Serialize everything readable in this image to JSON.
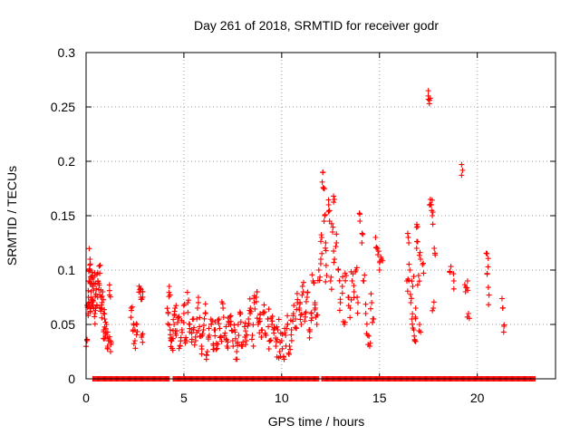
{
  "chart_data": {
    "type": "scatter",
    "title": "Day 261 of 2018, SRMTID for receiver godr",
    "xlabel": "GPS time / hours",
    "ylabel": "SRMTID / TECUs",
    "xlim": [
      0,
      24
    ],
    "ylim": [
      0,
      0.3
    ],
    "xticks": [
      0,
      5,
      10,
      15,
      20
    ],
    "xtick_labels": [
      "0",
      "5",
      "10",
      "15",
      "20"
    ],
    "yticks": [
      0,
      0.05,
      0.1,
      0.15,
      0.2,
      0.25,
      0.3
    ],
    "ytick_labels": [
      "0",
      "0.05",
      "0.1",
      "0.15",
      "0.2",
      "0.25",
      "0.3"
    ],
    "grid": true,
    "legend": "none",
    "marker": "+",
    "color": "#ff0000",
    "series": [
      {
        "name": "SRMTID",
        "points": [
          [
            0.05,
            0.035
          ],
          [
            0.1,
            0.06
          ],
          [
            0.12,
            0.075
          ],
          [
            0.15,
            0.09
          ],
          [
            0.18,
            0.1
          ],
          [
            0.2,
            0.11
          ],
          [
            0.22,
            0.065
          ],
          [
            0.25,
            0.08
          ],
          [
            0.28,
            0.07
          ],
          [
            0.3,
            0.095
          ],
          [
            0.33,
            0.085
          ],
          [
            0.36,
            0.072
          ],
          [
            0.4,
            0.088
          ],
          [
            0.45,
            0.06
          ],
          [
            0.5,
            0.078
          ],
          [
            0.55,
            0.068
          ],
          [
            0.6,
            0.09
          ],
          [
            0.65,
            0.082
          ],
          [
            0.7,
            0.097
          ],
          [
            0.75,
            0.075
          ],
          [
            0.8,
            0.065
          ],
          [
            0.85,
            0.08
          ],
          [
            0.9,
            0.045
          ],
          [
            0.95,
            0.055
          ],
          [
            1.0,
            0.04
          ],
          [
            1.05,
            0.05
          ],
          [
            1.1,
            0.03
          ],
          [
            1.15,
            0.035
          ],
          [
            1.2,
            0.077
          ],
          [
            1.25,
            0.025
          ],
          [
            2.3,
            0.065
          ],
          [
            2.4,
            0.045
          ],
          [
            2.5,
            0.035
          ],
          [
            2.6,
            0.05
          ],
          [
            2.75,
            0.082
          ],
          [
            2.8,
            0.075
          ],
          [
            2.85,
            0.04
          ],
          [
            2.9,
            0.08
          ],
          [
            4.2,
            0.06
          ],
          [
            4.25,
            0.085
          ],
          [
            4.3,
            0.045
          ],
          [
            4.35,
            0.035
          ],
          [
            4.4,
            0.028
          ],
          [
            4.5,
            0.05
          ],
          [
            4.55,
            0.065
          ],
          [
            4.6,
            0.04
          ],
          [
            4.7,
            0.055
          ],
          [
            4.8,
            0.03
          ],
          [
            4.9,
            0.045
          ],
          [
            5.0,
            0.06
          ],
          [
            5.1,
            0.038
          ],
          [
            5.2,
            0.07
          ],
          [
            5.3,
            0.05
          ],
          [
            5.4,
            0.042
          ],
          [
            5.5,
            0.055
          ],
          [
            5.6,
            0.035
          ],
          [
            5.7,
            0.065
          ],
          [
            5.8,
            0.048
          ],
          [
            5.9,
            0.03
          ],
          [
            6.0,
            0.045
          ],
          [
            6.1,
            0.06
          ],
          [
            6.2,
            0.025
          ],
          [
            6.3,
            0.04
          ],
          [
            6.4,
            0.05
          ],
          [
            6.5,
            0.032
          ],
          [
            6.6,
            0.045
          ],
          [
            6.7,
            0.028
          ],
          [
            6.8,
            0.055
          ],
          [
            6.9,
            0.038
          ],
          [
            7.0,
            0.065
          ],
          [
            7.1,
            0.042
          ],
          [
            7.2,
            0.03
          ],
          [
            7.3,
            0.05
          ],
          [
            7.4,
            0.058
          ],
          [
            7.5,
            0.035
          ],
          [
            7.6,
            0.045
          ],
          [
            7.7,
            0.025
          ],
          [
            7.8,
            0.04
          ],
          [
            7.9,
            0.06
          ],
          [
            8.0,
            0.03
          ],
          [
            8.1,
            0.048
          ],
          [
            8.2,
            0.035
          ],
          [
            8.3,
            0.055
          ],
          [
            8.4,
            0.065
          ],
          [
            8.5,
            0.04
          ],
          [
            8.6,
            0.07
          ],
          [
            8.7,
            0.075
          ],
          [
            8.8,
            0.05
          ],
          [
            8.9,
            0.06
          ],
          [
            9.0,
            0.045
          ],
          [
            9.1,
            0.068
          ],
          [
            9.2,
            0.04
          ],
          [
            9.3,
            0.055
          ],
          [
            9.4,
            0.035
          ],
          [
            9.5,
            0.05
          ],
          [
            9.6,
            0.042
          ],
          [
            9.7,
            0.03
          ],
          [
            9.8,
            0.045
          ],
          [
            9.9,
            0.025
          ],
          [
            10.0,
            0.035
          ],
          [
            10.1,
            0.02
          ],
          [
            10.2,
            0.04
          ],
          [
            10.3,
            0.05
          ],
          [
            10.4,
            0.03
          ],
          [
            10.5,
            0.045
          ],
          [
            10.6,
            0.06
          ],
          [
            10.7,
            0.055
          ],
          [
            10.8,
            0.07
          ],
          [
            10.9,
            0.065
          ],
          [
            11.0,
            0.05
          ],
          [
            11.1,
            0.08
          ],
          [
            11.2,
            0.06
          ],
          [
            11.3,
            0.075
          ],
          [
            11.4,
            0.045
          ],
          [
            11.5,
            0.06
          ],
          [
            11.6,
            0.09
          ],
          [
            11.7,
            0.07
          ],
          [
            11.8,
            0.05
          ],
          [
            11.9,
            0.1
          ],
          [
            12.0,
            0.11
          ],
          [
            12.05,
            0.13
          ],
          [
            12.1,
            0.19
          ],
          [
            12.15,
            0.175
          ],
          [
            12.2,
            0.15
          ],
          [
            12.25,
            0.125
          ],
          [
            12.3,
            0.095
          ],
          [
            12.4,
            0.16
          ],
          [
            12.45,
            0.145
          ],
          [
            12.5,
            0.09
          ],
          [
            12.6,
            0.135
          ],
          [
            12.65,
            0.168
          ],
          [
            12.7,
            0.11
          ],
          [
            12.8,
            0.125
          ],
          [
            12.9,
            0.1
          ],
          [
            13.0,
            0.07
          ],
          [
            13.1,
            0.085
          ],
          [
            13.2,
            0.05
          ],
          [
            13.3,
            0.095
          ],
          [
            13.4,
            0.075
          ],
          [
            13.5,
            0.065
          ],
          [
            13.6,
            0.09
          ],
          [
            13.7,
            0.08
          ],
          [
            13.8,
            0.1
          ],
          [
            13.9,
            0.07
          ],
          [
            14.0,
            0.145
          ],
          [
            14.1,
            0.125
          ],
          [
            14.2,
            0.09
          ],
          [
            14.3,
            0.06
          ],
          [
            14.4,
            0.04
          ],
          [
            14.5,
            0.03
          ],
          [
            14.6,
            0.07
          ],
          [
            14.7,
            0.055
          ],
          [
            14.8,
            0.13
          ],
          [
            14.9,
            0.12
          ],
          [
            15.0,
            0.1
          ],
          [
            15.1,
            0.11
          ],
          [
            16.4,
            0.09
          ],
          [
            16.5,
            0.125
          ],
          [
            16.55,
            0.1
          ],
          [
            16.6,
            0.07
          ],
          [
            16.65,
            0.055
          ],
          [
            16.7,
            0.085
          ],
          [
            16.75,
            0.045
          ],
          [
            16.8,
            0.035
          ],
          [
            16.85,
            0.065
          ],
          [
            16.9,
            0.12
          ],
          [
            16.95,
            0.14
          ],
          [
            17.0,
            0.095
          ],
          [
            17.05,
            0.05
          ],
          [
            17.1,
            0.11
          ],
          [
            17.2,
            0.105
          ],
          [
            17.5,
            0.257
          ],
          [
            17.55,
            0.253
          ],
          [
            17.6,
            0.165
          ],
          [
            17.65,
            0.16
          ],
          [
            17.7,
            0.15
          ],
          [
            17.75,
            0.065
          ],
          [
            17.8,
            0.12
          ],
          [
            18.6,
            0.098
          ],
          [
            18.8,
            0.09
          ],
          [
            19.2,
            0.197
          ],
          [
            19.4,
            0.08
          ],
          [
            19.5,
            0.09
          ],
          [
            19.55,
            0.06
          ],
          [
            20.5,
            0.115
          ],
          [
            20.55,
            0.103
          ],
          [
            20.6,
            0.077
          ],
          [
            21.3,
            0.065
          ],
          [
            21.35,
            0.043
          ]
        ]
      },
      {
        "name": "zero_band",
        "y": 0,
        "x_range": [
          0.35,
          23.0
        ],
        "gaps": [
          [
            4.25,
            4.4
          ],
          [
            11.95,
            12.05
          ]
        ]
      }
    ]
  }
}
